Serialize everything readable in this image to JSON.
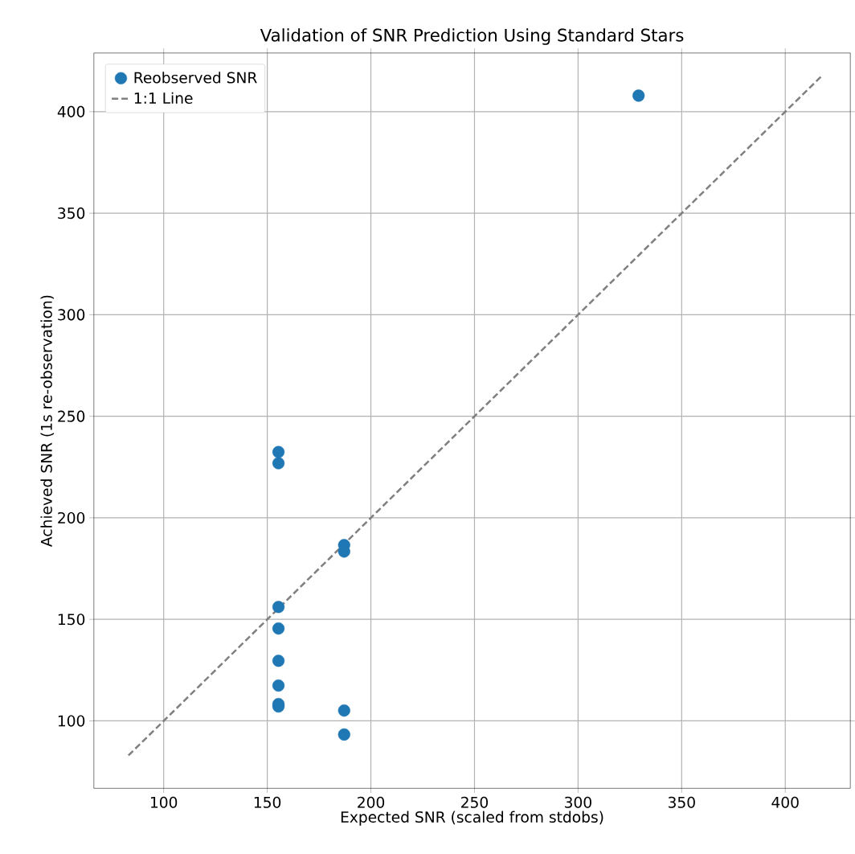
{
  "chart_data": {
    "type": "scatter",
    "title": "Validation of SNR Prediction Using Standard Stars",
    "xlabel": "Expected SNR (scaled from stdobs)",
    "ylabel": "Achieved SNR (1s re-observation)",
    "xlim": [
      66.3,
      431.4
    ],
    "ylim": [
      66.8,
      428.9
    ],
    "xticks": [
      100,
      150,
      200,
      250,
      300,
      350,
      400
    ],
    "yticks": [
      100,
      150,
      200,
      250,
      300,
      350,
      400
    ],
    "grid": true,
    "legend": "top left",
    "series": [
      {
        "name": "Reobserved SNR",
        "color": "#1f77b4",
        "marker": "circle",
        "x": [
          155.4,
          155.4,
          155.4,
          155.4,
          155.4,
          155.4,
          155.4,
          155.4,
          187.1,
          187.1,
          187.1,
          187.1,
          329.2
        ],
        "values": [
          232.4,
          226.9,
          156.1,
          145.5,
          129.6,
          117.4,
          108.3,
          107.1,
          186.6,
          183.4,
          105.1,
          93.3,
          407.9
        ]
      },
      {
        "name": "1:1 Line",
        "type": "line",
        "color": "#808080",
        "line_style": "dashed",
        "x": [
          83,
          417.4
        ],
        "values": [
          83,
          417.4
        ]
      }
    ]
  }
}
